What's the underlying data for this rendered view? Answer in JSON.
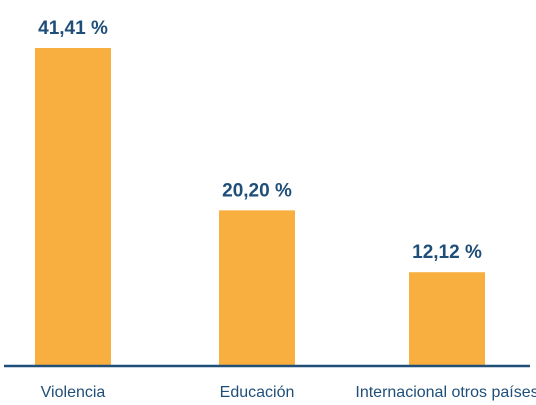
{
  "chart_data": {
    "type": "bar",
    "categories": [
      "Violencia",
      "Educación",
      "Internacional otros países"
    ],
    "values": [
      41.41,
      20.2,
      12.12
    ],
    "value_labels": [
      "41,41 %",
      "20,20 %",
      "12,12 %"
    ],
    "title": "",
    "xlabel": "",
    "ylabel": "",
    "ylim": [
      0,
      41.41
    ],
    "grid": false,
    "legend": "none"
  },
  "colors": {
    "bar": "#F9AF3F",
    "axis": "#1F4E79",
    "label_text": "#1F4E79",
    "category_text": "#1F4E79"
  }
}
